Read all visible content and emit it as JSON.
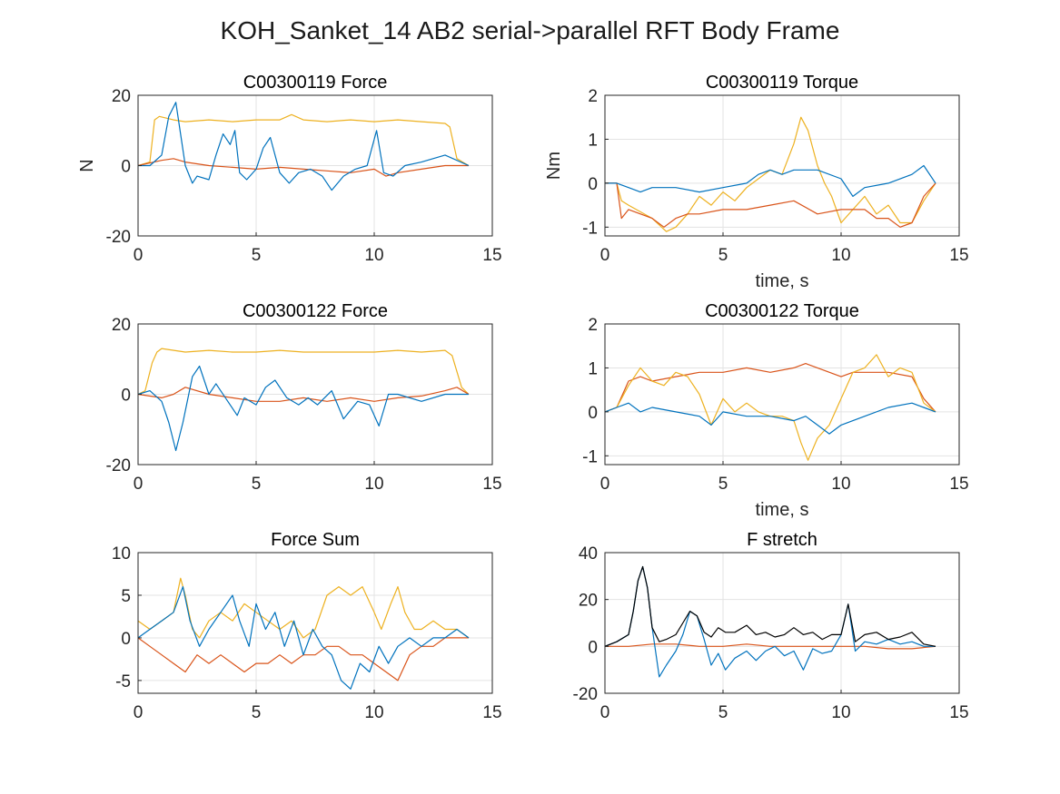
{
  "figure": {
    "suptitle": "KOH_Sanket_14 AB2 serial->parallel RFT Body Frame"
  },
  "chart_data": [
    {
      "type": "line",
      "title": "C00300119 Force",
      "xlabel": "",
      "ylabel": "N",
      "xlim": [
        0,
        15
      ],
      "ylim": [
        -20,
        20
      ],
      "xticks": [
        0,
        5,
        10,
        15
      ],
      "yticks": [
        -20,
        0,
        20
      ],
      "grid": true,
      "series": [
        {
          "color": "#EDB120",
          "x": [
            0,
            0.5,
            0.7,
            0.9,
            1.5,
            2,
            3,
            4,
            5,
            6,
            6.5,
            7,
            8,
            9,
            10,
            11,
            12,
            13,
            13.2,
            13.5,
            14
          ],
          "y": [
            0,
            1,
            13,
            14,
            13,
            12.5,
            13,
            12.5,
            13,
            13,
            14.5,
            13,
            12.5,
            13,
            12.5,
            13,
            12.5,
            12,
            11,
            2,
            0
          ]
        },
        {
          "color": "#D95319",
          "x": [
            0,
            1,
            1.5,
            2,
            3,
            4,
            5,
            6,
            7,
            8,
            9,
            10,
            10.5,
            11,
            12,
            13,
            14
          ],
          "y": [
            0,
            1.5,
            2,
            1,
            0,
            -0.5,
            -1,
            -0.5,
            -1,
            -1.5,
            -2,
            -1,
            -3,
            -2,
            -1,
            0,
            0
          ]
        },
        {
          "color": "#0072BD",
          "x": [
            0,
            0.5,
            1,
            1.3,
            1.6,
            1.8,
            2,
            2.3,
            2.5,
            3,
            3.3,
            3.6,
            3.9,
            4.1,
            4.3,
            4.6,
            5,
            5.3,
            5.6,
            6,
            6.4,
            6.8,
            7.3,
            7.8,
            8.2,
            8.7,
            9.2,
            9.7,
            10.1,
            10.4,
            10.8,
            11.3,
            12,
            13,
            14
          ],
          "y": [
            0,
            0,
            3,
            14,
            18,
            9,
            0,
            -5,
            -3,
            -4,
            3,
            9,
            6,
            10,
            -2,
            -4,
            -1,
            5,
            8,
            -2,
            -5,
            -2,
            -1,
            -3,
            -7,
            -3,
            -1,
            0,
            10,
            -2,
            -3,
            0,
            1,
            3,
            0
          ]
        }
      ]
    },
    {
      "type": "line",
      "title": "C00300119 Torque",
      "xlabel": "time, s",
      "ylabel": "Nm",
      "xlim": [
        0,
        15
      ],
      "ylim": [
        -1.2,
        2
      ],
      "xticks": [
        0,
        5,
        10,
        15
      ],
      "yticks": [
        -1,
        0,
        1,
        2
      ],
      "grid": true,
      "series": [
        {
          "color": "#EDB120",
          "x": [
            0,
            0.5,
            0.7,
            1,
            2,
            2.6,
            3,
            3.5,
            4,
            4.5,
            5,
            5.5,
            6,
            6.5,
            7,
            7.5,
            8,
            8.3,
            8.6,
            9,
            9.3,
            9.6,
            10,
            10.5,
            11,
            11.5,
            12,
            12.5,
            13,
            13.5,
            14
          ],
          "y": [
            0,
            0,
            -0.4,
            -0.5,
            -0.8,
            -1.1,
            -1.0,
            -0.7,
            -0.3,
            -0.5,
            -0.2,
            -0.4,
            -0.1,
            0.1,
            0.3,
            0.2,
            0.9,
            1.5,
            1.2,
            0.4,
            0.0,
            -0.3,
            -0.9,
            -0.6,
            -0.3,
            -0.7,
            -0.5,
            -0.9,
            -0.9,
            -0.4,
            0
          ]
        },
        {
          "color": "#D95319",
          "x": [
            0,
            0.5,
            0.7,
            1,
            2,
            2.5,
            3,
            3.5,
            4,
            5,
            6,
            7,
            8,
            9,
            10,
            11,
            11.5,
            12,
            12.5,
            13,
            13.5,
            14
          ],
          "y": [
            0,
            0,
            -0.8,
            -0.6,
            -0.8,
            -1.0,
            -0.8,
            -0.7,
            -0.7,
            -0.6,
            -0.6,
            -0.5,
            -0.4,
            -0.7,
            -0.6,
            -0.6,
            -0.8,
            -0.8,
            -1.0,
            -0.9,
            -0.3,
            0
          ]
        },
        {
          "color": "#0072BD",
          "x": [
            0,
            0.5,
            1,
            1.5,
            2,
            3,
            4,
            5,
            6,
            6.5,
            7,
            7.5,
            8,
            8.5,
            9,
            10,
            10.5,
            11,
            12,
            13,
            13.5,
            14
          ],
          "y": [
            0,
            0,
            -0.1,
            -0.2,
            -0.1,
            -0.1,
            -0.2,
            -0.1,
            0.0,
            0.2,
            0.3,
            0.2,
            0.3,
            0.3,
            0.3,
            0.1,
            -0.3,
            -0.1,
            0.0,
            0.2,
            0.4,
            0
          ]
        }
      ]
    },
    {
      "type": "line",
      "title": "C00300122 Force",
      "xlabel": "",
      "ylabel": "",
      "xlim": [
        0,
        15
      ],
      "ylim": [
        -20,
        20
      ],
      "xticks": [
        0,
        5,
        10,
        15
      ],
      "yticks": [
        -20,
        0,
        20
      ],
      "grid": true,
      "series": [
        {
          "color": "#EDB120",
          "x": [
            0,
            0.3,
            0.6,
            0.8,
            1,
            2,
            3,
            4,
            5,
            6,
            7,
            8,
            9,
            10,
            11,
            12,
            13,
            13.3,
            13.7,
            14
          ],
          "y": [
            0,
            1,
            9,
            12,
            13,
            12,
            12.5,
            12,
            12,
            12.5,
            12,
            12,
            12,
            12,
            12.5,
            12,
            12.5,
            11,
            2,
            0
          ]
        },
        {
          "color": "#D95319",
          "x": [
            0,
            1,
            1.5,
            2,
            3,
            4,
            5,
            6,
            7,
            8,
            9,
            10,
            11,
            12,
            13,
            13.5,
            14
          ],
          "y": [
            0,
            -1,
            0,
            2,
            0,
            -1,
            -2,
            -2,
            -1,
            -2,
            -1,
            -2,
            -1,
            -0.5,
            1,
            2,
            0
          ]
        },
        {
          "color": "#0072BD",
          "x": [
            0,
            0.5,
            1,
            1.3,
            1.6,
            1.9,
            2.3,
            2.6,
            3,
            3.3,
            3.8,
            4.2,
            4.5,
            5,
            5.4,
            5.8,
            6.3,
            6.8,
            7.2,
            7.6,
            8.2,
            8.7,
            9.3,
            9.8,
            10.2,
            10.6,
            11,
            12,
            13,
            13.5,
            14
          ],
          "y": [
            0,
            1,
            -2,
            -8,
            -16,
            -8,
            5,
            8,
            0,
            3,
            -2,
            -6,
            -1,
            -3,
            2,
            4,
            -1,
            -3,
            -1,
            -3,
            1,
            -7,
            -2,
            -3,
            -9,
            0,
            0,
            -2,
            0,
            0,
            0
          ]
        }
      ]
    },
    {
      "type": "line",
      "title": "C00300122 Torque",
      "xlabel": "time, s",
      "ylabel": "",
      "xlim": [
        0,
        15
      ],
      "ylim": [
        -1.2,
        2
      ],
      "xticks": [
        0,
        5,
        10,
        15
      ],
      "yticks": [
        -1,
        0,
        1,
        2
      ],
      "grid": true,
      "series": [
        {
          "color": "#D95319",
          "x": [
            0,
            0.5,
            1,
            1.5,
            2,
            3,
            4,
            5,
            6,
            7,
            8,
            8.5,
            9,
            10,
            10.5,
            11,
            12,
            13,
            13.5,
            14
          ],
          "y": [
            0,
            0.1,
            0.7,
            0.8,
            0.7,
            0.8,
            0.9,
            0.9,
            1.0,
            0.9,
            1.0,
            1.1,
            1.0,
            0.8,
            0.9,
            0.9,
            0.9,
            0.8,
            0.3,
            0
          ]
        },
        {
          "color": "#EDB120",
          "x": [
            0,
            0.5,
            1,
            1.5,
            2,
            2.5,
            3,
            3.5,
            4,
            4.5,
            5,
            5.5,
            6,
            6.5,
            7,
            7.5,
            8,
            8.3,
            8.6,
            9,
            9.5,
            10,
            10.5,
            11,
            11.5,
            12,
            12.5,
            13,
            13.5,
            14
          ],
          "y": [
            0,
            0.1,
            0.6,
            1.0,
            0.7,
            0.6,
            0.9,
            0.8,
            0.4,
            -0.3,
            0.3,
            0.0,
            0.2,
            0.0,
            -0.1,
            -0.1,
            -0.2,
            -0.7,
            -1.1,
            -0.6,
            -0.3,
            0.3,
            0.9,
            1.0,
            1.3,
            0.8,
            1.0,
            0.9,
            0.2,
            0
          ]
        },
        {
          "color": "#0072BD",
          "x": [
            0,
            0.5,
            1,
            1.5,
            2,
            3,
            4,
            4.5,
            5,
            6,
            7,
            8,
            8.5,
            9,
            9.5,
            10,
            11,
            12,
            13,
            13.5,
            14
          ],
          "y": [
            0,
            0.1,
            0.2,
            0.0,
            0.1,
            0.0,
            -0.1,
            -0.3,
            0.0,
            -0.1,
            -0.1,
            -0.2,
            -0.1,
            -0.3,
            -0.5,
            -0.3,
            -0.1,
            0.1,
            0.2,
            0.1,
            0
          ]
        }
      ]
    },
    {
      "type": "line",
      "title": "Force Sum",
      "xlabel": "",
      "ylabel": "",
      "xlim": [
        0,
        15
      ],
      "ylim": [
        -6.5,
        10
      ],
      "xticks": [
        0,
        5,
        10,
        15
      ],
      "yticks": [
        -5,
        0,
        5,
        10
      ],
      "grid": true,
      "series": [
        {
          "color": "#EDB120",
          "x": [
            0,
            0.5,
            1,
            1.5,
            1.8,
            2,
            2.3,
            2.6,
            3,
            3.5,
            4,
            4.5,
            5,
            5.5,
            6,
            6.5,
            7,
            7.5,
            8,
            8.5,
            9,
            9.5,
            10,
            10.3,
            10.7,
            11,
            11.3,
            11.7,
            12,
            12.5,
            13,
            13.5,
            14
          ],
          "y": [
            2,
            1,
            2,
            3,
            7,
            5,
            1,
            0,
            2,
            3,
            2,
            4,
            3,
            2,
            1,
            2,
            0,
            1,
            5,
            6,
            5,
            6,
            3,
            1,
            4,
            6,
            3,
            1,
            1,
            2,
            1,
            1,
            0
          ]
        },
        {
          "color": "#D95319",
          "x": [
            0,
            0.5,
            1,
            1.5,
            2,
            2.5,
            3,
            3.5,
            4,
            4.5,
            5,
            5.5,
            6,
            6.5,
            7,
            7.5,
            8,
            8.5,
            9,
            9.5,
            10,
            10.5,
            11,
            11.5,
            12,
            12.5,
            13,
            13.5,
            14
          ],
          "y": [
            0,
            -1,
            -2,
            -3,
            -4,
            -2,
            -3,
            -2,
            -3,
            -4,
            -3,
            -3,
            -2,
            -3,
            -2,
            -2,
            -1,
            -1,
            -2,
            -2,
            -3,
            -4,
            -5,
            -2,
            -1,
            -1,
            0,
            0,
            0
          ]
        },
        {
          "color": "#0072BD",
          "x": [
            0,
            0.5,
            1,
            1.5,
            1.9,
            2.2,
            2.6,
            3,
            3.5,
            4,
            4.3,
            4.7,
            5,
            5.4,
            5.8,
            6.2,
            6.6,
            7,
            7.4,
            7.8,
            8.2,
            8.6,
            9,
            9.4,
            9.8,
            10.2,
            10.6,
            11,
            11.5,
            12,
            12.5,
            13,
            13.5,
            14
          ],
          "y": [
            0,
            1,
            2,
            3,
            6,
            2,
            -1,
            1,
            3,
            5,
            2,
            -1,
            4,
            1,
            3,
            -1,
            2,
            -2,
            1,
            -1,
            -2,
            -5,
            -6,
            -3,
            -4,
            -1,
            -3,
            -1,
            0,
            -1,
            0,
            0,
            1,
            0
          ]
        }
      ]
    },
    {
      "type": "line",
      "title": "F stretch",
      "xlabel": "",
      "ylabel": "",
      "xlim": [
        0,
        15
      ],
      "ylim": [
        -20,
        40
      ],
      "xticks": [
        0,
        5,
        10,
        15
      ],
      "yticks": [
        -20,
        0,
        20,
        40
      ],
      "grid": true,
      "series": [
        {
          "color": "#D95319",
          "x": [
            0,
            1,
            2,
            3,
            4,
            5,
            6,
            7,
            8,
            9,
            10,
            11,
            12,
            13,
            14
          ],
          "y": [
            0,
            0,
            1,
            1,
            0,
            0,
            1,
            0,
            0,
            0,
            0,
            0,
            -1,
            -1,
            0
          ]
        },
        {
          "color": "#0072BD",
          "x": [
            0,
            0.5,
            1,
            1.2,
            1.4,
            1.6,
            1.8,
            2,
            2.3,
            2.6,
            3,
            3.3,
            3.6,
            3.9,
            4.2,
            4.5,
            4.8,
            5.1,
            5.5,
            6,
            6.4,
            6.8,
            7.2,
            7.6,
            8,
            8.4,
            8.8,
            9.2,
            9.6,
            10,
            10.3,
            10.6,
            11,
            11.5,
            12,
            12.5,
            13,
            13.5,
            14
          ],
          "y": [
            0,
            2,
            5,
            15,
            28,
            34,
            25,
            8,
            -13,
            -8,
            -2,
            5,
            15,
            13,
            3,
            -8,
            -3,
            -10,
            -5,
            -2,
            -6,
            -2,
            0,
            -4,
            -2,
            -10,
            -1,
            -3,
            -2,
            5,
            18,
            -2,
            2,
            1,
            3,
            1,
            2,
            0,
            0
          ]
        },
        {
          "color": "#000000",
          "x": [
            0,
            0.5,
            1,
            1.2,
            1.4,
            1.6,
            1.8,
            2,
            2.3,
            2.6,
            3,
            3.3,
            3.6,
            3.9,
            4.2,
            4.5,
            4.8,
            5.1,
            5.5,
            6,
            6.4,
            6.8,
            7.2,
            7.6,
            8,
            8.4,
            8.8,
            9.2,
            9.6,
            10,
            10.3,
            10.6,
            11,
            11.5,
            12,
            12.5,
            13,
            13.5,
            14
          ],
          "y": [
            0,
            2,
            5,
            15,
            28,
            34,
            25,
            8,
            2,
            3,
            5,
            10,
            15,
            13,
            6,
            4,
            8,
            6,
            6,
            9,
            5,
            6,
            4,
            5,
            8,
            5,
            6,
            3,
            5,
            5,
            18,
            2,
            5,
            6,
            3,
            4,
            6,
            1,
            0
          ]
        }
      ]
    }
  ]
}
